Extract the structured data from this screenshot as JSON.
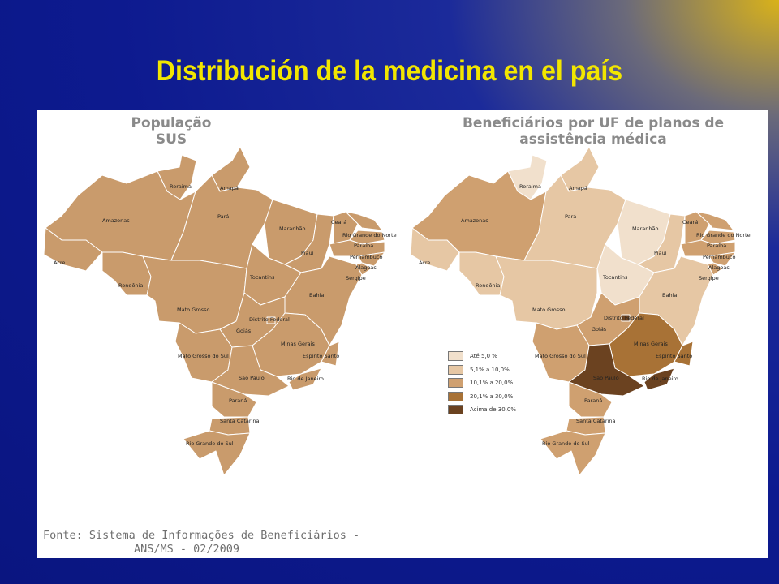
{
  "slide": {
    "title": "Distribución de la medicina en el país"
  },
  "colors": {
    "sus_fill": "#c99b6c",
    "state_border": "#ffffff",
    "class_1": "#f1e0cc",
    "class_2": "#e6c7a4",
    "class_3": "#cfa070",
    "class_4": "#a87236",
    "class_5": "#6b4220"
  },
  "map_left": {
    "title_line1": "População",
    "title_line2": "SUS",
    "labels": {
      "roraima": "Roraima",
      "amapa": "Amapá",
      "amazonas": "Amazonas",
      "para": "Pará",
      "acre": "Acre",
      "maranhao": "Maranhão",
      "ceara": "Ceará",
      "rgn": "Rio Grande do Norte",
      "paraiba": "Paraíba",
      "pernambuco": "Pernambuco",
      "alagoas": "Alagoas",
      "sergipe": "Sergipe",
      "piaui": "Piauí",
      "tocantins": "Tocantins",
      "rondonia": "Rondônia",
      "bahia": "Bahia",
      "mato_grosso": "Mato Grosso",
      "df": "Distrito Federal",
      "goias": "Goiás",
      "minas": "Minas Gerais",
      "ms": "Mato Grosso do Sul",
      "es": "Espírito Santo",
      "sp": "São Paulo",
      "rj": "Rio de Janeiro",
      "parana": "Paraná",
      "sc": "Santa Catarina",
      "rs": "Rio Grande do Sul"
    }
  },
  "map_right": {
    "title_line1": "Beneficiários por UF  de planos de",
    "title_line2": "assistência médica",
    "legend": [
      {
        "label": "Até 5,0 %",
        "color": "#f1e0cc"
      },
      {
        "label": "5,1% a 10,0%",
        "color": "#e6c7a4"
      },
      {
        "label": "10,1% a 20,0%",
        "color": "#cfa070"
      },
      {
        "label": "20,1% a 30,0%",
        "color": "#a87236"
      },
      {
        "label": "Acima de 30,0%",
        "color": "#6b4220"
      }
    ],
    "labels": {
      "roraima": "Roraima",
      "amapa": "Amapá",
      "amazonas": "Amazonas",
      "para": "Pará",
      "acre": "Acre",
      "maranhao": "Maranhão",
      "ceara": "Ceará",
      "rgn": "Rio Grande do Norte",
      "paraiba": "Paraíba",
      "pernambuco": "Pernambuco",
      "alagoas": "Alagoas",
      "sergipe": "Sergipe",
      "piaui": "Piauí",
      "tocantins": "Tocantins",
      "rondonia": "Rondônia",
      "bahia": "Bahia",
      "mato_grosso": "Mato Grosso",
      "df": "Distrito Federal",
      "goias": "Goiás",
      "minas": "Minas Gerais",
      "ms": "Mato Grosso do Sul",
      "es": "Espírito Santo",
      "sp": "São Paulo",
      "rj": "Rio de Janeiro",
      "parana": "Paraná",
      "sc": "Santa Catarina",
      "rs": "Rio Grande do Sul"
    }
  },
  "source": {
    "line1": "Fonte: Sistema de Informações de Beneficiários -",
    "line2": "ANS/MS - 02/2009"
  }
}
